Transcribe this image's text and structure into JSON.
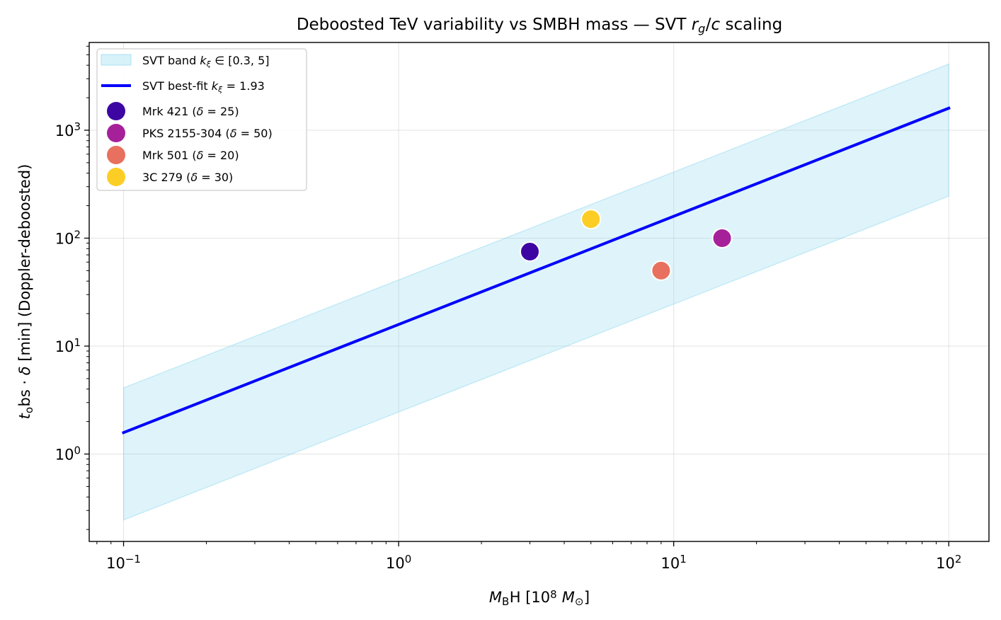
{
  "chart_data": {
    "type": "scatter",
    "title": "Deboosted TeV variability vs SMBH mass — SVT r_g/c scaling",
    "xlabel": "M_BH [10^8 M_⊙]",
    "ylabel": "t_obs · δ [min] (Doppler-deboosted)",
    "xscale": "log",
    "yscale": "log",
    "xlim": [
      0.075,
      140
    ],
    "ylim": [
      0.155,
      6500
    ],
    "grid": true,
    "legend_position": "upper-left",
    "x_ticks": [
      {
        "value": 0.1,
        "base": "10",
        "exp": "−1"
      },
      {
        "value": 1,
        "base": "10",
        "exp": "0"
      },
      {
        "value": 10,
        "base": "10",
        "exp": "1"
      },
      {
        "value": 100,
        "base": "10",
        "exp": "2"
      }
    ],
    "y_ticks": [
      {
        "value": 1,
        "base": "10",
        "exp": "0"
      },
      {
        "value": 10,
        "base": "10",
        "exp": "1"
      },
      {
        "value": 100,
        "base": "10",
        "exp": "2"
      },
      {
        "value": 1000,
        "base": "10",
        "exp": "3"
      }
    ],
    "band": {
      "name": "SVT band k_ξ ∈ [0.3, 5]",
      "x_range": [
        0.1,
        100
      ],
      "lower": [
        0.245,
        245
      ],
      "upper": [
        4.1,
        4100
      ],
      "color": "#7fd3ea"
    },
    "best_fit": {
      "name": "SVT best-fit k_ξ = 1.93",
      "x": [
        0.1,
        100
      ],
      "y": [
        1.58,
        1600
      ],
      "color": "#0000ff"
    },
    "series": [
      {
        "name": "Mrk 421 (δ = 25)",
        "x": 3,
        "y": 75,
        "color": "#3d06a3"
      },
      {
        "name": "PKS 2155-304 (δ = 50)",
        "x": 15,
        "y": 100,
        "color": "#a6209a"
      },
      {
        "name": "Mrk 501 (δ = 20)",
        "x": 9,
        "y": 50,
        "color": "#e8705e"
      },
      {
        "name": "3C 279 (δ = 30)",
        "x": 5,
        "y": 150,
        "color": "#fcce25"
      }
    ]
  }
}
